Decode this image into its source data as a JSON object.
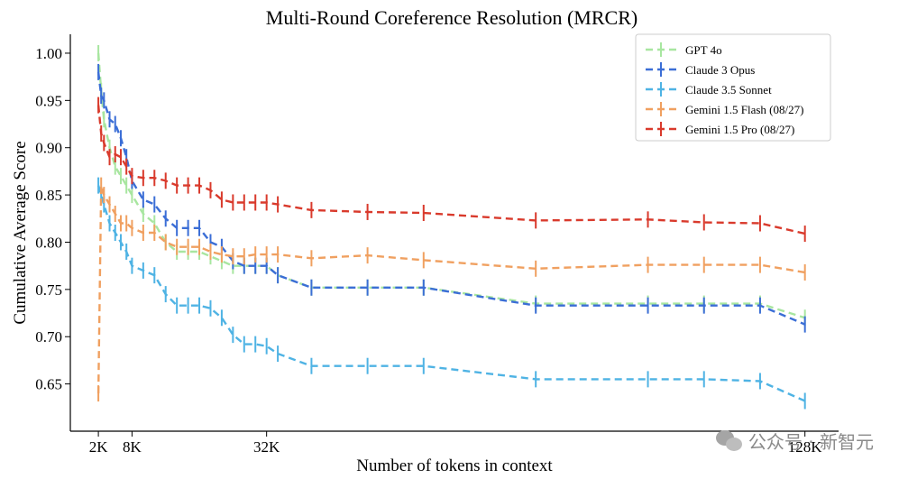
{
  "chart_data": {
    "type": "line",
    "title": "Multi-Round Coreference Resolution (MRCR)",
    "xlabel": "Number of tokens in context",
    "ylabel": "Cumulative Average Score",
    "xlim": [
      -3000,
      134000
    ],
    "ylim": [
      0.6,
      1.02
    ],
    "x_ticks": [
      {
        "value": 2000,
        "label": "2K"
      },
      {
        "value": 8000,
        "label": "8K"
      },
      {
        "value": 32000,
        "label": "32K"
      },
      {
        "value": 128000,
        "label": "128K"
      }
    ],
    "y_ticks": [
      {
        "value": 0.65,
        "label": "0.65"
      },
      {
        "value": 0.7,
        "label": "0.70"
      },
      {
        "value": 0.75,
        "label": "0.75"
      },
      {
        "value": 0.8,
        "label": "0.80"
      },
      {
        "value": 0.85,
        "label": "0.85"
      },
      {
        "value": 0.9,
        "label": "0.90"
      },
      {
        "value": 0.95,
        "label": "0.95"
      },
      {
        "value": 1.0,
        "label": "1.00"
      }
    ],
    "grid": false,
    "legend_position": "top-right",
    "series": [
      {
        "name": "GPT 4o",
        "color": "#a8e6a0",
        "x": [
          2000,
          2500,
          3000,
          4000,
          5000,
          6000,
          7000,
          8000,
          10000,
          12000,
          14000,
          16000,
          18000,
          20000,
          22000,
          24000,
          26000,
          28000,
          30000,
          32000,
          34000,
          40000,
          50000,
          60000,
          80000,
          100000,
          110000,
          120000,
          128000
        ],
        "y": [
          1.0,
          0.96,
          0.93,
          0.9,
          0.88,
          0.87,
          0.86,
          0.85,
          0.83,
          0.82,
          0.8,
          0.79,
          0.79,
          0.79,
          0.785,
          0.78,
          0.775,
          0.775,
          0.775,
          0.775,
          0.765,
          0.752,
          0.752,
          0.752,
          0.735,
          0.735,
          0.735,
          0.735,
          0.72
        ]
      },
      {
        "name": "Claude 3 Opus",
        "color": "#3b6ed6",
        "x": [
          2000,
          2500,
          3000,
          4000,
          5000,
          6000,
          7000,
          8000,
          10000,
          12000,
          14000,
          16000,
          18000,
          20000,
          22000,
          24000,
          26000,
          28000,
          30000,
          32000,
          34000,
          40000,
          50000,
          60000,
          80000,
          100000,
          110000,
          120000,
          128000
        ],
        "y": [
          0.98,
          0.955,
          0.95,
          0.93,
          0.925,
          0.91,
          0.89,
          0.865,
          0.845,
          0.84,
          0.825,
          0.815,
          0.815,
          0.815,
          0.8,
          0.795,
          0.78,
          0.775,
          0.775,
          0.775,
          0.765,
          0.752,
          0.752,
          0.752,
          0.733,
          0.733,
          0.733,
          0.733,
          0.713
        ]
      },
      {
        "name": "Claude 3.5 Sonnet",
        "color": "#4fb3e4",
        "x": [
          2000,
          2500,
          3000,
          4000,
          5000,
          6000,
          7000,
          8000,
          10000,
          12000,
          14000,
          16000,
          18000,
          20000,
          22000,
          24000,
          26000,
          28000,
          30000,
          32000,
          34000,
          40000,
          50000,
          60000,
          80000,
          100000,
          110000,
          120000,
          128000
        ],
        "y": [
          0.86,
          0.85,
          0.84,
          0.82,
          0.81,
          0.8,
          0.79,
          0.775,
          0.77,
          0.765,
          0.745,
          0.733,
          0.733,
          0.733,
          0.73,
          0.72,
          0.702,
          0.692,
          0.692,
          0.69,
          0.682,
          0.669,
          0.669,
          0.669,
          0.655,
          0.655,
          0.655,
          0.653,
          0.632
        ]
      },
      {
        "name": "Gemini 1.5 Flash (08/27)",
        "color": "#f0a060",
        "x": [
          2000,
          2500,
          3000,
          4000,
          5000,
          6000,
          7000,
          8000,
          10000,
          12000,
          14000,
          16000,
          18000,
          20000,
          22000,
          24000,
          26000,
          28000,
          30000,
          32000,
          34000,
          40000,
          50000,
          60000,
          80000,
          100000,
          110000,
          120000,
          128000
        ],
        "y": [
          0.64,
          0.86,
          0.85,
          0.84,
          0.83,
          0.82,
          0.82,
          0.815,
          0.81,
          0.81,
          0.8,
          0.795,
          0.795,
          0.795,
          0.79,
          0.787,
          0.785,
          0.785,
          0.787,
          0.787,
          0.787,
          0.783,
          0.786,
          0.781,
          0.772,
          0.776,
          0.776,
          0.776,
          0.768
        ]
      },
      {
        "name": "Gemini 1.5 Pro (08/27)",
        "color": "#d93a2c",
        "x": [
          2000,
          2500,
          3000,
          4000,
          5000,
          6000,
          7000,
          8000,
          10000,
          12000,
          14000,
          16000,
          18000,
          20000,
          22000,
          24000,
          26000,
          28000,
          30000,
          32000,
          34000,
          40000,
          50000,
          60000,
          80000,
          100000,
          110000,
          120000,
          128000
        ],
        "y": [
          0.945,
          0.915,
          0.905,
          0.89,
          0.893,
          0.89,
          0.88,
          0.87,
          0.868,
          0.868,
          0.865,
          0.86,
          0.86,
          0.86,
          0.855,
          0.845,
          0.842,
          0.842,
          0.842,
          0.842,
          0.84,
          0.834,
          0.832,
          0.831,
          0.823,
          0.824,
          0.821,
          0.82,
          0.809
        ]
      }
    ]
  },
  "watermark": {
    "text": "公众号 · 新智元",
    "icon": "wechat-icon"
  }
}
